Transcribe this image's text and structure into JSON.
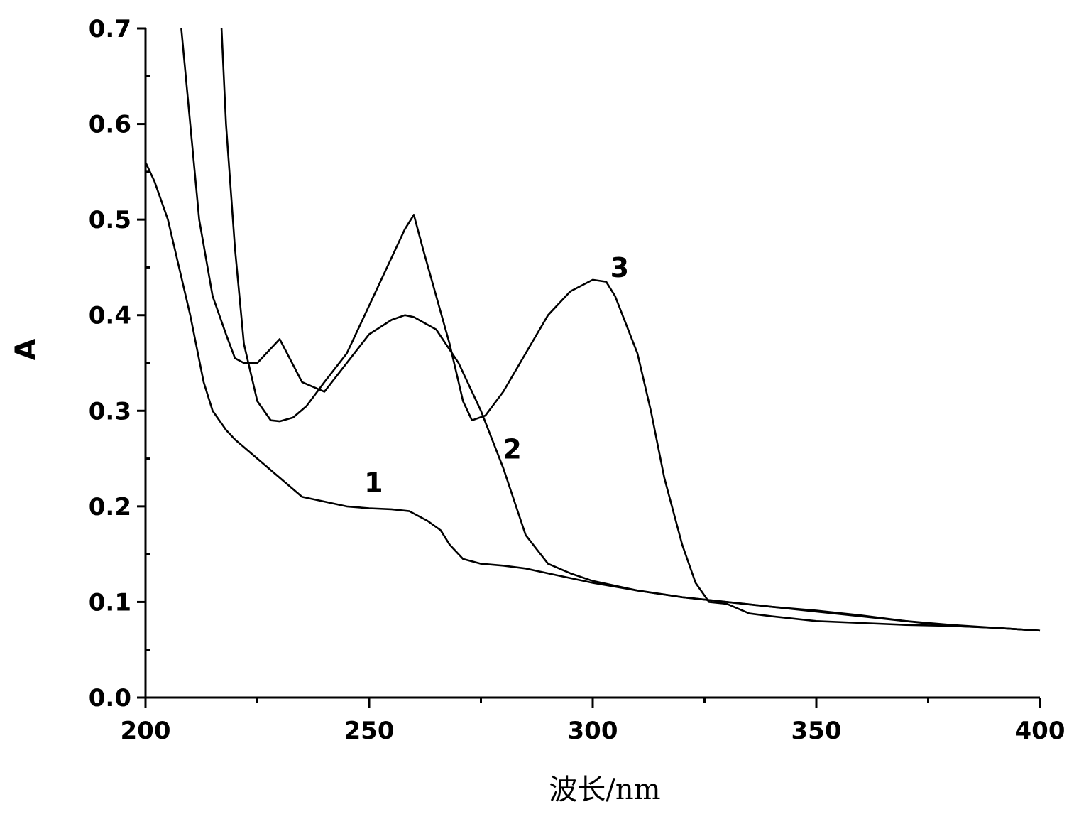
{
  "chart_data": {
    "type": "line",
    "title": "",
    "xlabel": "波长/nm",
    "ylabel": "A",
    "xlim": [
      200,
      400
    ],
    "ylim": [
      0.0,
      0.7
    ],
    "x_ticks": [
      200,
      250,
      300,
      350,
      400
    ],
    "x_tick_labels": [
      "200",
      "250",
      "300",
      "350",
      "400"
    ],
    "y_ticks": [
      0.0,
      0.1,
      0.2,
      0.3,
      0.4,
      0.5,
      0.6,
      0.7
    ],
    "y_tick_labels": [
      "0.0",
      "0.1",
      "0.2",
      "0.3",
      "0.4",
      "0.5",
      "0.6",
      "0.7"
    ],
    "x_minor_step": 25,
    "y_minor_step": 0.05,
    "grid": false,
    "legend": "none",
    "line_color": "#000000",
    "series": [
      {
        "name": "1",
        "x": [
          200,
          202,
          205,
          208,
          210,
          213,
          215,
          218,
          220,
          225,
          230,
          235,
          240,
          245,
          250,
          255,
          259,
          263,
          266,
          268,
          271,
          275,
          280,
          285,
          290,
          300,
          310,
          320,
          330,
          340,
          350,
          360,
          370,
          380,
          390,
          400
        ],
        "y": [
          0.56,
          0.54,
          0.5,
          0.44,
          0.4,
          0.33,
          0.3,
          0.28,
          0.27,
          0.25,
          0.23,
          0.21,
          0.205,
          0.2,
          0.198,
          0.197,
          0.195,
          0.185,
          0.175,
          0.16,
          0.145,
          0.14,
          0.138,
          0.135,
          0.13,
          0.12,
          0.112,
          0.105,
          0.1,
          0.095,
          0.09,
          0.085,
          0.08,
          0.075,
          0.073,
          0.07
        ]
      },
      {
        "name": "2",
        "x": [
          208,
          210,
          212,
          215,
          218,
          220,
          222,
          225,
          230,
          235,
          240,
          245,
          250,
          255,
          258,
          260,
          265,
          270,
          275,
          280,
          285,
          290,
          295,
          300,
          310,
          320,
          330,
          340,
          350,
          360,
          370,
          380,
          390,
          400
        ],
        "y": [
          0.7,
          0.6,
          0.5,
          0.42,
          0.38,
          0.355,
          0.35,
          0.35,
          0.375,
          0.33,
          0.32,
          0.35,
          0.38,
          0.395,
          0.4,
          0.398,
          0.385,
          0.35,
          0.3,
          0.24,
          0.17,
          0.14,
          0.13,
          0.122,
          0.112,
          0.105,
          0.1,
          0.095,
          0.091,
          0.086,
          0.08,
          0.076,
          0.073,
          0.07
        ]
      },
      {
        "name": "3",
        "x": [
          217,
          218,
          220,
          222,
          225,
          228,
          230,
          233,
          236,
          240,
          245,
          250,
          255,
          258,
          260,
          262,
          265,
          268,
          271,
          273,
          276,
          280,
          285,
          290,
          295,
          300,
          303,
          305,
          310,
          313,
          316,
          320,
          323,
          326,
          330,
          335,
          340,
          350,
          360,
          370,
          380,
          390,
          400
        ],
        "y": [
          0.7,
          0.6,
          0.47,
          0.37,
          0.31,
          0.29,
          0.289,
          0.293,
          0.305,
          0.33,
          0.36,
          0.41,
          0.46,
          0.49,
          0.505,
          0.47,
          0.42,
          0.37,
          0.31,
          0.29,
          0.295,
          0.32,
          0.36,
          0.4,
          0.425,
          0.437,
          0.435,
          0.42,
          0.36,
          0.3,
          0.23,
          0.16,
          0.12,
          0.1,
          0.098,
          0.088,
          0.085,
          0.08,
          0.078,
          0.076,
          0.075,
          0.073,
          0.07
        ]
      }
    ],
    "curve_labels": [
      {
        "text": "1",
        "x": 251,
        "y": 0.215
      },
      {
        "text": "2",
        "x": 282,
        "y": 0.25
      },
      {
        "text": "3",
        "x": 306,
        "y": 0.44
      }
    ]
  }
}
